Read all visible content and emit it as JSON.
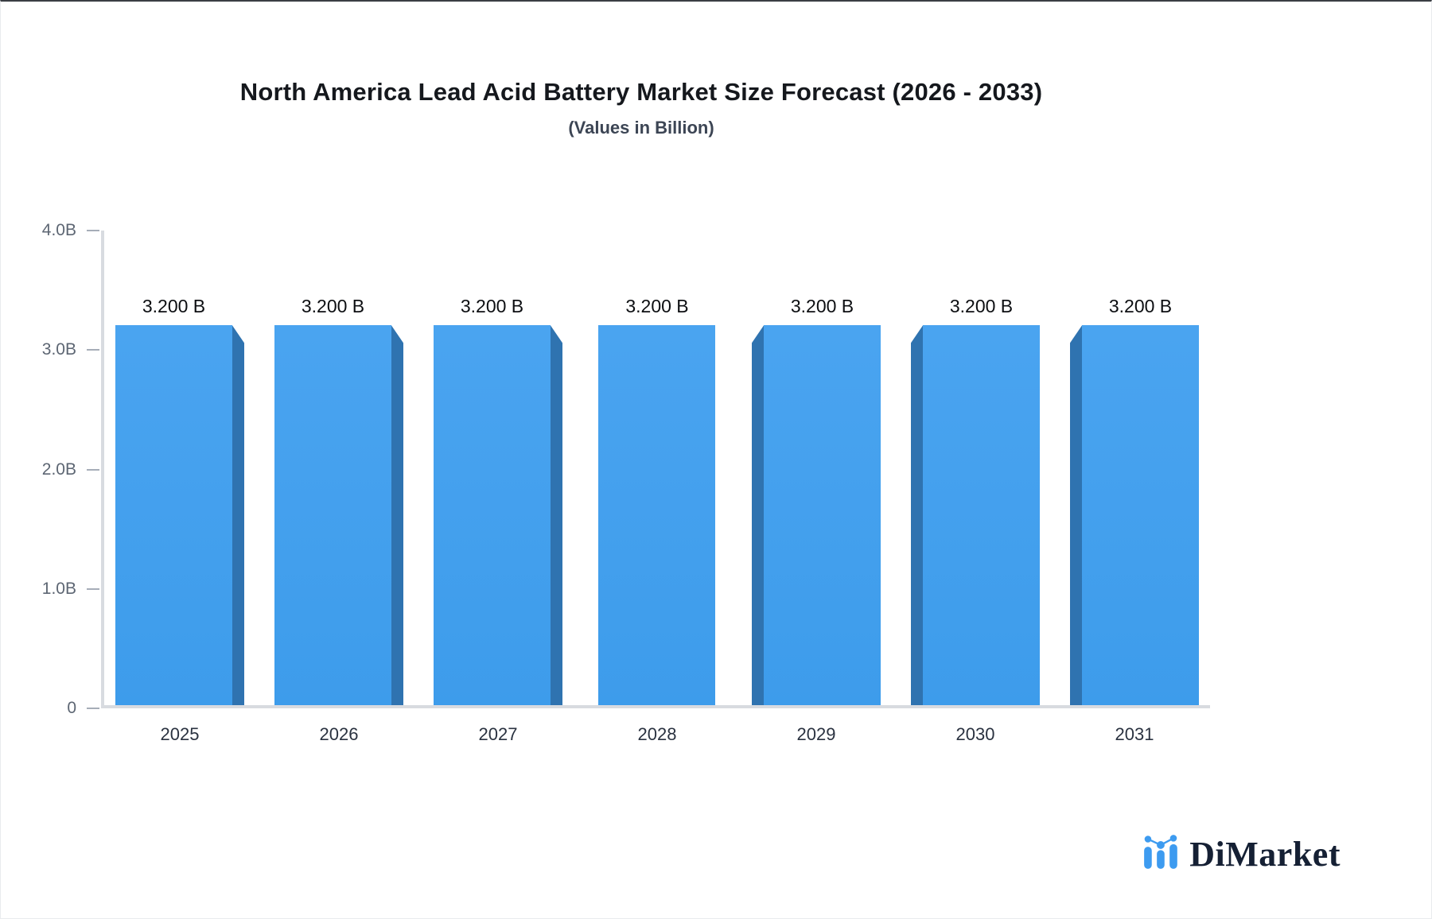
{
  "header": {
    "title": "North America Lead Acid Battery Market Size Forecast (2026 - 2033)",
    "subtitle": "(Values in Billion)"
  },
  "chart_data": {
    "type": "bar",
    "title": "North America Lead Acid Battery Market Size Forecast (2026 - 2033)",
    "subtitle": "(Values in Billion)",
    "unit": "Billion",
    "categories": [
      "2025",
      "2026",
      "2027",
      "2028",
      "2029",
      "2030",
      "2031"
    ],
    "values": [
      3.2,
      3.2,
      3.2,
      3.2,
      3.2,
      3.2,
      3.2
    ],
    "value_labels": [
      "3.200 B",
      "3.200 B",
      "3.200 B",
      "3.200 B",
      "3.200 B",
      "3.200 B",
      "3.200 B"
    ],
    "ylim": [
      0,
      4
    ],
    "y_ticks": [
      "4.0B",
      "3.0B",
      "2.0B",
      "1.0B",
      "0"
    ],
    "grid": false,
    "legend": false,
    "bar_color": "#42a0ee",
    "bar_side_color": "#2f73b0",
    "axis_color": "#d8dbe0",
    "effect": "3d-bevel"
  },
  "logo": {
    "text": "DiMarket",
    "icon": "bar-line-chart-icon",
    "icon_color": "#3d9bf0",
    "text_color": "#152034"
  }
}
